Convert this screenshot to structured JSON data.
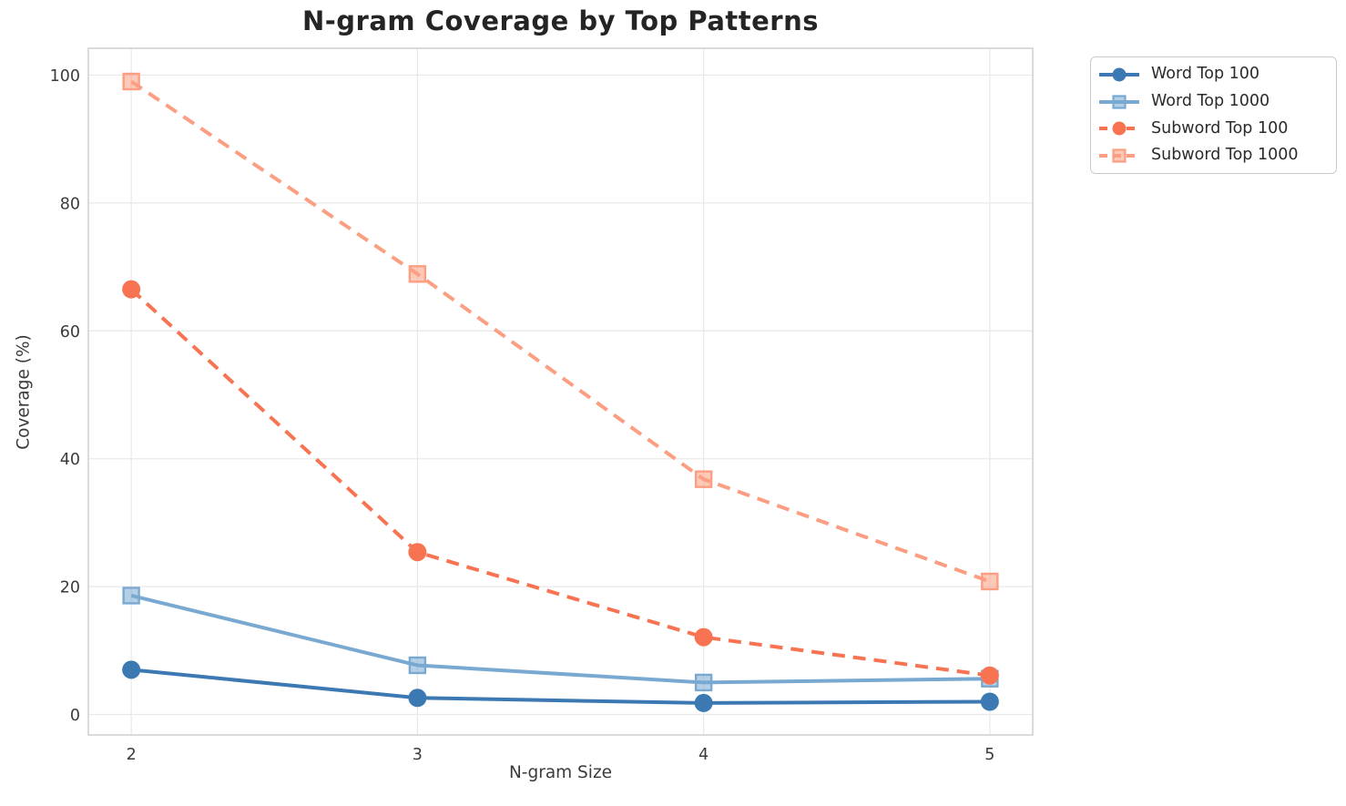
{
  "chart_data": {
    "type": "line",
    "title": "N-gram Coverage by Top Patterns",
    "xlabel": "N-gram Size",
    "ylabel": "Coverage (%)",
    "x": [
      2,
      3,
      4,
      5
    ],
    "series": [
      {
        "name": "Word Top 100",
        "values": [
          7.0,
          2.6,
          1.8,
          2.0
        ],
        "color": "#3c79b2",
        "line_style": "solid",
        "marker": "circle"
      },
      {
        "name": "Word Top 1000",
        "values": [
          18.6,
          7.7,
          5.0,
          5.6
        ],
        "color": "#79a9d1",
        "line_style": "solid",
        "marker": "square"
      },
      {
        "name": "Subword Top 100",
        "values": [
          66.5,
          25.4,
          12.1,
          6.1
        ],
        "color": "#f87351",
        "line_style": "dashed",
        "marker": "circle"
      },
      {
        "name": "Subword Top 1000",
        "values": [
          99.0,
          68.9,
          36.8,
          20.8
        ],
        "color": "#fb9e81",
        "line_style": "dashed",
        "marker": "square"
      }
    ],
    "xticks": [
      "2",
      "3",
      "4",
      "5"
    ],
    "yticks": [
      0,
      20,
      40,
      60,
      80,
      100
    ],
    "xlim": [
      1.85,
      5.15
    ],
    "ylim": [
      -3.2,
      104.2
    ],
    "grid": true,
    "legend_position": "outside-top-right",
    "colors": {
      "background": "#ffffff",
      "grid": "#e9e9e9",
      "spine": "#d2d2d2",
      "title_text": "#242424",
      "axis_text": "#3a3a3a",
      "tick_text": "#3b3b3b",
      "legend_border": "#cbcbcb"
    }
  }
}
